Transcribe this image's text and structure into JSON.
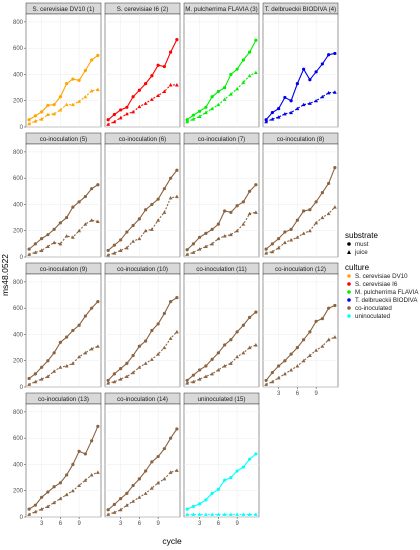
{
  "chart_data": {
    "type": "line",
    "xlabel": "cycle",
    "ylabel": "ms48.0522",
    "x": [
      1,
      2,
      3,
      4,
      5,
      6,
      7,
      8,
      9,
      10,
      11,
      12
    ],
    "x_ticks": [
      3,
      6,
      9
    ],
    "y_ticks": [
      0,
      200,
      400,
      600,
      800
    ],
    "ylim": [
      0,
      860
    ],
    "xlim": [
      0.5,
      12.5
    ],
    "legend": {
      "placement": "right",
      "substrate_title": "substrate",
      "substrate_items": [
        {
          "label": "must",
          "shape": "circle"
        },
        {
          "label": "juice",
          "shape": "triangle"
        }
      ],
      "culture_title": "culture",
      "culture_items": [
        {
          "label": "S. cerevisiae DV10",
          "color": "#FFA500"
        },
        {
          "label": "S. cerevisiae I6",
          "color": "#FF0000"
        },
        {
          "label": "M. pulcherrima FLAVIA",
          "color": "#00EE00"
        },
        {
          "label": "T. delbrueckii BIODIVA",
          "color": "#0000EE"
        },
        {
          "label": "co-inoculated",
          "color": "#8B6340"
        },
        {
          "label": "uninoculated",
          "color": "#00FFFF"
        }
      ]
    },
    "panels": [
      {
        "title": "S. cerevisiae DV10 (1)",
        "color": "#FFA500",
        "must": [
          55,
          85,
          115,
          165,
          170,
          230,
          330,
          365,
          355,
          430,
          510,
          545
        ],
        "juice": [
          25,
          45,
          60,
          95,
          100,
          130,
          170,
          170,
          195,
          230,
          275,
          285
        ]
      },
      {
        "title": "S. cerevisiae I6 (2)",
        "color": "#FF0000",
        "must": [
          55,
          95,
          130,
          150,
          230,
          280,
          330,
          390,
          470,
          460,
          570,
          665
        ],
        "juice": [
          20,
          40,
          70,
          100,
          115,
          155,
          180,
          210,
          240,
          270,
          320,
          320
        ]
      },
      {
        "title": "M. pulcherrima FLAVIA (3)",
        "color": "#00EE00",
        "must": [
          55,
          90,
          120,
          150,
          230,
          270,
          300,
          400,
          440,
          510,
          570,
          660
        ],
        "juice": [
          40,
          60,
          80,
          110,
          140,
          170,
          210,
          250,
          290,
          340,
          390,
          415
        ]
      },
      {
        "title": "T. delbrueckii BIODIVA (4)",
        "color": "#0000EE",
        "must": [
          55,
          110,
          140,
          225,
          200,
          330,
          440,
          360,
          420,
          480,
          550,
          560
        ],
        "juice": [
          40,
          60,
          75,
          100,
          110,
          140,
          170,
          180,
          200,
          230,
          260,
          265
        ]
      },
      {
        "title": "co-inoculation (5)",
        "color": "#8B6340",
        "must": [
          60,
          100,
          140,
          170,
          210,
          260,
          300,
          380,
          420,
          460,
          520,
          550
        ],
        "juice": [
          20,
          35,
          50,
          80,
          110,
          100,
          160,
          150,
          200,
          250,
          280,
          270
        ]
      },
      {
        "title": "co-inoculation (6)",
        "color": "#8B6340",
        "must": [
          50,
          90,
          130,
          190,
          240,
          290,
          360,
          400,
          440,
          520,
          600,
          660
        ],
        "juice": [
          15,
          30,
          50,
          70,
          120,
          140,
          200,
          210,
          280,
          340,
          450,
          460
        ]
      },
      {
        "title": "co-inoculation (7)",
        "color": "#8B6340",
        "must": [
          55,
          100,
          150,
          180,
          210,
          250,
          350,
          340,
          390,
          420,
          500,
          550
        ],
        "juice": [
          20,
          35,
          60,
          80,
          100,
          140,
          160,
          170,
          200,
          250,
          330,
          340
        ]
      },
      {
        "title": "co-inoculation (8)",
        "color": "#8B6340",
        "must": [
          60,
          100,
          140,
          190,
          210,
          280,
          350,
          360,
          420,
          490,
          560,
          680
        ],
        "juice": [
          30,
          40,
          70,
          110,
          130,
          150,
          180,
          200,
          260,
          300,
          330,
          380
        ]
      },
      {
        "title": "co-inoculation (9)",
        "color": "#8B6340",
        "must": [
          65,
          100,
          150,
          200,
          260,
          340,
          380,
          430,
          470,
          540,
          600,
          650
        ],
        "juice": [
          20,
          40,
          60,
          80,
          120,
          150,
          160,
          180,
          230,
          260,
          290,
          310
        ]
      },
      {
        "title": "co-inoculation (10)",
        "color": "#8B6340",
        "must": [
          50,
          100,
          140,
          180,
          240,
          310,
          350,
          430,
          480,
          560,
          650,
          680
        ],
        "juice": [
          30,
          40,
          60,
          80,
          110,
          150,
          180,
          210,
          250,
          300,
          370,
          420
        ]
      },
      {
        "title": "co-inoculation (11)",
        "color": "#8B6340",
        "must": [
          50,
          90,
          130,
          160,
          210,
          260,
          320,
          360,
          420,
          470,
          530,
          570
        ],
        "juice": [
          30,
          40,
          60,
          80,
          100,
          130,
          160,
          180,
          230,
          260,
          300,
          320
        ]
      },
      {
        "title": "co-inoculation (12)",
        "color": "#8B6340",
        "must": [
          50,
          110,
          160,
          200,
          250,
          300,
          360,
          420,
          500,
          520,
          600,
          620
        ],
        "juice": [
          20,
          40,
          70,
          100,
          130,
          160,
          200,
          240,
          280,
          310,
          360,
          380
        ]
      },
      {
        "title": "co-inoculation (13)",
        "color": "#8B6340",
        "must": [
          60,
          90,
          150,
          190,
          230,
          260,
          320,
          400,
          500,
          480,
          580,
          690
        ],
        "juice": [
          20,
          40,
          60,
          80,
          110,
          140,
          170,
          200,
          240,
          280,
          320,
          340
        ]
      },
      {
        "title": "co-inoculation (14)",
        "color": "#8B6340",
        "must": [
          55,
          95,
          140,
          180,
          240,
          290,
          350,
          420,
          460,
          520,
          600,
          670
        ],
        "juice": [
          20,
          35,
          55,
          90,
          120,
          150,
          180,
          220,
          260,
          290,
          340,
          355
        ]
      },
      {
        "title": "uninoculated (15)",
        "color": "#00FFFF",
        "must": [
          60,
          80,
          100,
          130,
          180,
          210,
          280,
          300,
          350,
          380,
          440,
          480
        ],
        "juice": [
          20,
          20,
          20,
          20,
          20,
          20,
          20,
          20,
          20,
          20,
          20,
          20
        ]
      }
    ]
  }
}
